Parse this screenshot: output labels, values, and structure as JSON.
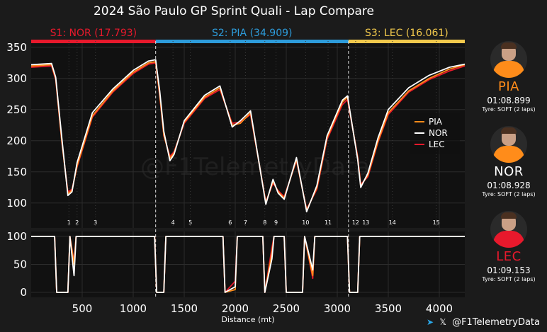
{
  "title": "2024 São Paulo GP Sprint Quali - Lap Compare",
  "watermark": "@F1TelemetryData",
  "footer": {
    "telegram_icon": "telegram-icon",
    "x_icon": "x-icon",
    "handle": "@F1TelemetryData"
  },
  "colors": {
    "background": "#1b1b1b",
    "PIA": "#ff8c1a",
    "NOR": "#ffffff",
    "LEC": "#e8192c"
  },
  "drivers": [
    {
      "code": "PIA",
      "lap_time": "01:08.899",
      "tyre": "Tyre: SOFT (2 laps)",
      "color": "#ff8c1a"
    },
    {
      "code": "NOR",
      "lap_time": "01:08.928",
      "tyre": "Tyre: SOFT (2 laps)",
      "color": "#ffffff"
    },
    {
      "code": "LEC",
      "lap_time": "01:09.153",
      "tyre": "Tyre: SOFT (2 laps)",
      "color": "#e8192c"
    }
  ],
  "chart_data": [
    {
      "type": "line",
      "title": "2024 São Paulo GP Sprint Quali - Lap Compare",
      "xlabel": "Distance (mt)",
      "ylabel": "",
      "xlim": [
        0,
        4250
      ],
      "ylim": [
        60,
        360
      ],
      "x_ticks": [
        500,
        1000,
        1500,
        2000,
        2500,
        3000,
        3500,
        4000
      ],
      "y_ticks": [
        100,
        150,
        200,
        250,
        300,
        350
      ],
      "grid": true,
      "legend": "right",
      "sectors": [
        {
          "label": "S1: NOR (17.793)",
          "start": 0,
          "end": 1220,
          "color": "#e8192c"
        },
        {
          "label": "S2: PIA (34.909)",
          "start": 1220,
          "end": 3110,
          "color": "#2d9cdb"
        },
        {
          "label": "S3: LEC (16.061)",
          "start": 3110,
          "end": 4250,
          "color": "#f2c94c"
        }
      ],
      "corners": [
        {
          "label": "1",
          "x": 370
        },
        {
          "label": "2",
          "x": 450
        },
        {
          "label": "3",
          "x": 630
        },
        {
          "label": "4",
          "x": 1390
        },
        {
          "label": "5",
          "x": 1560
        },
        {
          "label": "6",
          "x": 1950
        },
        {
          "label": "7",
          "x": 2100
        },
        {
          "label": "8",
          "x": 2290
        },
        {
          "label": "9",
          "x": 2400
        },
        {
          "label": "10",
          "x": 2690
        },
        {
          "label": "11",
          "x": 2910
        },
        {
          "label": "12",
          "x": 3180
        },
        {
          "label": "13",
          "x": 3280
        },
        {
          "label": "14",
          "x": 3540
        },
        {
          "label": "15",
          "x": 3970
        }
      ],
      "series": [
        {
          "name": "PIA",
          "x": [
            0,
            200,
            240,
            300,
            360,
            400,
            450,
            600,
            800,
            1000,
            1150,
            1220,
            1260,
            1300,
            1360,
            1400,
            1500,
            1700,
            1850,
            1970,
            2050,
            2150,
            2300,
            2370,
            2420,
            2480,
            2600,
            2700,
            2800,
            2900,
            3050,
            3100,
            3200,
            3230,
            3300,
            3400,
            3500,
            3700,
            3900,
            4100,
            4250
          ],
          "values": [
            320,
            322,
            300,
            200,
            115,
            120,
            160,
            240,
            280,
            310,
            325,
            327,
            275,
            210,
            172,
            180,
            230,
            270,
            285,
            225,
            228,
            245,
            100,
            135,
            118,
            108,
            170,
            88,
            125,
            205,
            262,
            270,
            172,
            127,
            145,
            200,
            245,
            280,
            300,
            315,
            322
          ]
        },
        {
          "name": "NOR",
          "x": [
            0,
            200,
            240,
            300,
            360,
            400,
            450,
            600,
            800,
            1000,
            1150,
            1220,
            1260,
            1300,
            1360,
            1400,
            1500,
            1700,
            1850,
            1970,
            2050,
            2150,
            2300,
            2370,
            2420,
            2480,
            2600,
            2700,
            2800,
            2900,
            3050,
            3100,
            3200,
            3230,
            3300,
            3400,
            3500,
            3700,
            3900,
            4100,
            4250
          ],
          "values": [
            322,
            324,
            302,
            205,
            112,
            118,
            165,
            245,
            283,
            313,
            328,
            330,
            280,
            215,
            168,
            178,
            232,
            273,
            288,
            222,
            232,
            248,
            98,
            138,
            116,
            106,
            173,
            86,
            128,
            208,
            265,
            272,
            170,
            125,
            148,
            205,
            250,
            285,
            305,
            318,
            323
          ]
        },
        {
          "name": "LEC",
          "x": [
            0,
            200,
            240,
            300,
            360,
            400,
            450,
            600,
            800,
            1000,
            1150,
            1220,
            1260,
            1300,
            1360,
            1400,
            1500,
            1700,
            1850,
            1970,
            2050,
            2150,
            2300,
            2370,
            2420,
            2480,
            2600,
            2700,
            2800,
            2900,
            3050,
            3100,
            3200,
            3230,
            3300,
            3400,
            3500,
            3700,
            3900,
            4100,
            4250
          ],
          "values": [
            318,
            320,
            298,
            198,
            118,
            122,
            158,
            238,
            278,
            308,
            323,
            325,
            272,
            208,
            175,
            182,
            228,
            268,
            282,
            228,
            230,
            242,
            102,
            132,
            120,
            110,
            168,
            90,
            122,
            202,
            258,
            266,
            175,
            130,
            142,
            198,
            242,
            278,
            298,
            312,
            320
          ]
        }
      ]
    },
    {
      "type": "line",
      "xlabel": "Distance (mt)",
      "xlim": [
        0,
        4250
      ],
      "ylim": [
        0,
        100
      ],
      "y_ticks": [
        0,
        50,
        100
      ],
      "grid": true,
      "series": [
        {
          "name": "PIA",
          "x": [
            0,
            230,
            250,
            360,
            380,
            420,
            440,
            1210,
            1230,
            1300,
            1320,
            1880,
            1900,
            2000,
            2020,
            2270,
            2290,
            2360,
            2380,
            2480,
            2500,
            2660,
            2680,
            2760,
            2780,
            3100,
            3120,
            3200,
            3220,
            4250
          ],
          "values": [
            100,
            100,
            0,
            0,
            100,
            50,
            100,
            100,
            0,
            0,
            100,
            100,
            0,
            5,
            100,
            100,
            0,
            70,
            100,
            100,
            0,
            0,
            100,
            30,
            100,
            100,
            0,
            0,
            100,
            100
          ]
        },
        {
          "name": "NOR",
          "x": [
            0,
            230,
            250,
            360,
            380,
            420,
            440,
            1210,
            1230,
            1300,
            1320,
            1880,
            1900,
            2000,
            2020,
            2270,
            2290,
            2360,
            2380,
            2480,
            2500,
            2660,
            2680,
            2760,
            2780,
            3100,
            3120,
            3200,
            3220,
            4250
          ],
          "values": [
            100,
            100,
            0,
            0,
            100,
            30,
            100,
            100,
            0,
            0,
            100,
            100,
            0,
            10,
            100,
            100,
            0,
            60,
            100,
            100,
            0,
            0,
            100,
            40,
            100,
            100,
            0,
            0,
            100,
            100
          ]
        },
        {
          "name": "LEC",
          "x": [
            0,
            230,
            250,
            360,
            380,
            420,
            440,
            1210,
            1230,
            1300,
            1320,
            1880,
            1900,
            2000,
            2020,
            2270,
            2290,
            2360,
            2380,
            2480,
            2500,
            2660,
            2680,
            2760,
            2780,
            3100,
            3120,
            3200,
            3220,
            4250
          ],
          "values": [
            100,
            100,
            0,
            0,
            100,
            55,
            100,
            100,
            0,
            0,
            100,
            100,
            0,
            20,
            100,
            100,
            0,
            80,
            100,
            100,
            0,
            0,
            100,
            25,
            100,
            100,
            0,
            0,
            100,
            100
          ]
        }
      ]
    }
  ]
}
